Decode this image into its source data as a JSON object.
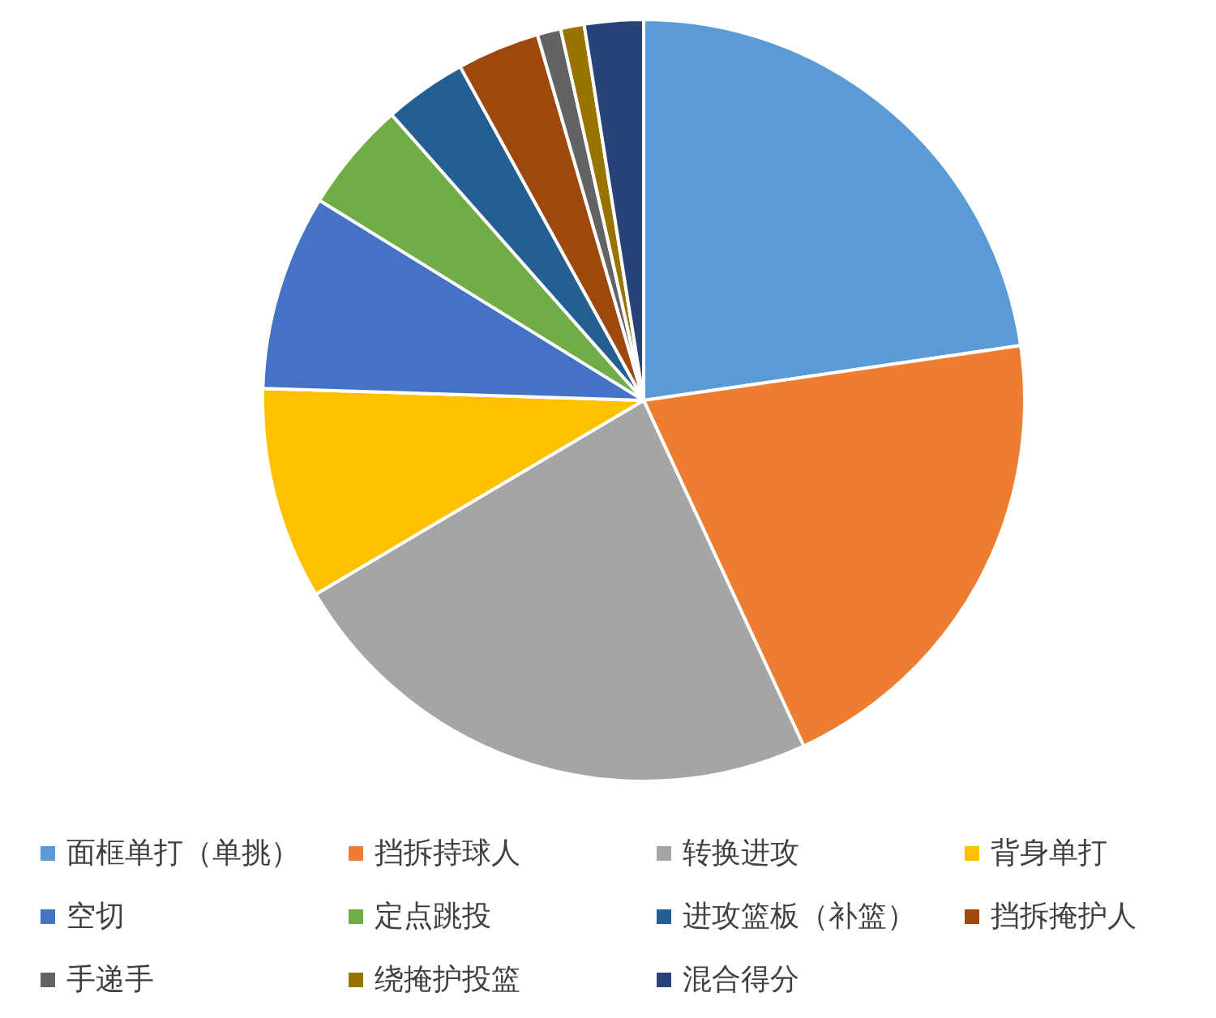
{
  "chart_data": {
    "type": "pie",
    "legend": "bottom",
    "categories": [
      "面框单打（单挑）",
      "挡拆持球人",
      "转换进攻",
      "背身单打",
      "空切",
      "定点跳投",
      "进攻篮板（补篮）",
      "挡拆掩护人",
      "手递手",
      "绕掩护投篮",
      "混合得分"
    ],
    "values": [
      22.7,
      20.4,
      23.4,
      9.0,
      8.3,
      4.7,
      3.5,
      3.5,
      1.0,
      1.0,
      2.5
    ],
    "colors": [
      "#5b9bd5",
      "#ed7d31",
      "#a5a5a5",
      "#ffc000",
      "#4472c4",
      "#70ad47",
      "#255e91",
      "#9e480e",
      "#636363",
      "#997300",
      "#264478"
    ]
  }
}
